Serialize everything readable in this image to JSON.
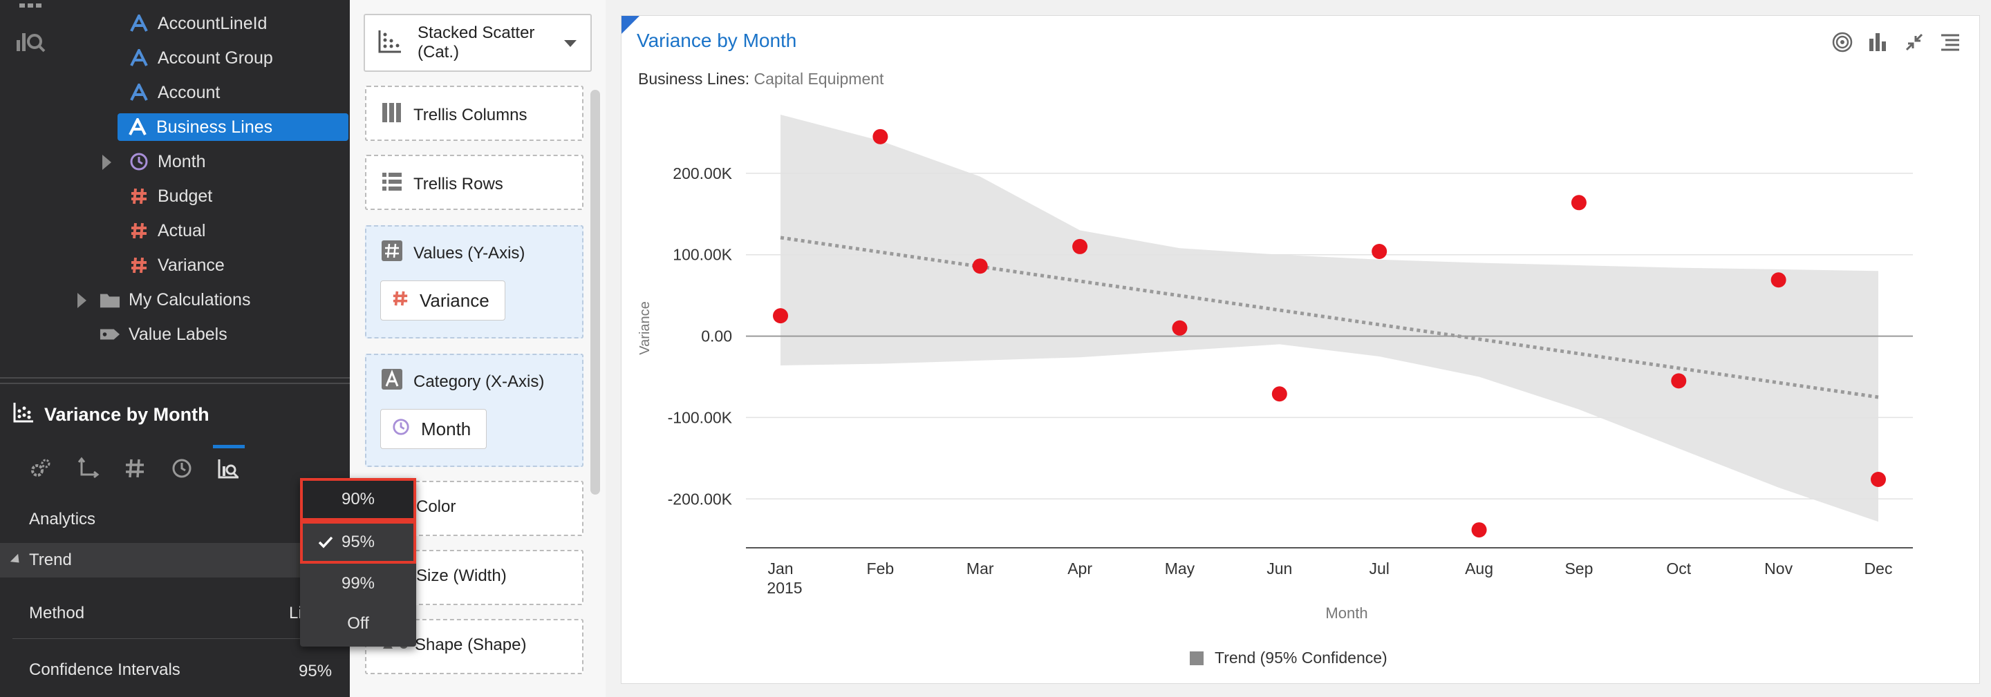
{
  "tree": {
    "items": [
      {
        "label": "AccountLineId",
        "kind": "attribute"
      },
      {
        "label": "Account Group",
        "kind": "attribute"
      },
      {
        "label": "Account",
        "kind": "attribute"
      },
      {
        "label": "Business Lines",
        "kind": "attribute",
        "selected": true
      },
      {
        "label": "Month",
        "kind": "time"
      },
      {
        "label": "Budget",
        "kind": "measure"
      },
      {
        "label": "Actual",
        "kind": "measure"
      },
      {
        "label": "Variance",
        "kind": "measure"
      },
      {
        "label": "My Calculations",
        "kind": "folder"
      },
      {
        "label": "Value Labels",
        "kind": "tag"
      }
    ]
  },
  "properties": {
    "viz_title": "Variance by Month",
    "section": "Analytics",
    "trend_label": "Trend",
    "method_label": "Method",
    "method_value": "Li",
    "conf_label": "Confidence Intervals",
    "conf_value": "95%"
  },
  "dropdown": {
    "options": [
      "90%",
      "95%",
      "99%",
      "Off"
    ],
    "selected": "95%"
  },
  "grammar": {
    "chart_type": "Stacked Scatter (Cat.)",
    "trellis_columns": "Trellis Columns",
    "trellis_rows": "Trellis Rows",
    "values_zone": "Values (Y-Axis)",
    "values_pill": "Variance",
    "category_zone": "Category (X-Axis)",
    "category_pill": "Month",
    "color_zone": "Color",
    "size_zone": "Size (Width)",
    "shape_zone": "Shape (Shape)"
  },
  "chart": {
    "title": "Variance by Month",
    "filter_label": "Business Lines:",
    "filter_value": "Capital Equipment",
    "legend": "Trend (95% Confidence)",
    "colors": {
      "point": "#e8141e",
      "band": "#e5e5e5",
      "trend": "#9a9a9a",
      "accent": "#1a73c8"
    }
  },
  "chart_data": {
    "type": "scatter",
    "categories": [
      "Jan",
      "Feb",
      "Mar",
      "Apr",
      "May",
      "Jun",
      "Jul",
      "Aug",
      "Sep",
      "Oct",
      "Nov",
      "Dec"
    ],
    "sub_label": "2015",
    "values": [
      25000,
      245000,
      86000,
      110000,
      10000,
      -71000,
      104000,
      -238000,
      164000,
      -55000,
      69000,
      -176000
    ],
    "trend": {
      "start": 121000,
      "end": -75000
    },
    "confidence_band": {
      "upper": [
        272000,
        240000,
        196000,
        130000,
        108000,
        100000,
        94000,
        90000,
        87000,
        84000,
        82000,
        80000
      ],
      "lower": [
        -36000,
        -34000,
        -30000,
        -26000,
        -18000,
        -10000,
        -25000,
        -50000,
        -90000,
        -138000,
        -186000,
        -228000
      ]
    },
    "ylabel": "Variance",
    "xlabel": "Month",
    "ylim": [
      -260000,
      300000
    ],
    "yticks": [
      200000,
      100000,
      0,
      -100000,
      -200000
    ],
    "ytick_labels": [
      "200.00K",
      "100.00K",
      "0.00",
      "-100.00K",
      "-200.00K"
    ],
    "grid": true
  }
}
